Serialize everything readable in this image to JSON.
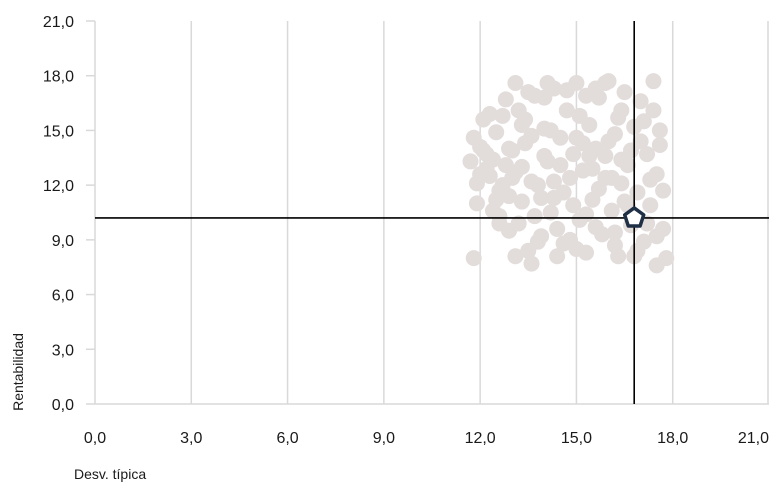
{
  "chart_data": {
    "type": "scatter",
    "title": "",
    "xlabel": "Desv. típica",
    "ylabel": "Rentabilidad",
    "xlim": [
      0,
      21
    ],
    "ylim": [
      0,
      21
    ],
    "x_ticks": [
      "0,0",
      "3,0",
      "6,0",
      "9,0",
      "12,0",
      "15,0",
      "18,0",
      "21,0"
    ],
    "y_ticks": [
      "0,0",
      "3,0",
      "6,0",
      "9,0",
      "12,0",
      "15,0",
      "18,0",
      "21,0"
    ],
    "grid": "vertical",
    "colors": {
      "points": "#e2dcdb",
      "grid": "#d9d9d9",
      "crosshair": "#000000",
      "marker_stroke": "#1f2f45",
      "marker_fill": "#ffffff"
    },
    "highlight": {
      "x": 16.8,
      "y": 10.2,
      "shape": "pentagon"
    },
    "crosshair": {
      "x": 16.8,
      "y": 10.2
    },
    "series": [
      {
        "points": [
          [
            11.8,
            8.0
          ],
          [
            11.7,
            13.3
          ],
          [
            11.8,
            14.6
          ],
          [
            11.9,
            12.1
          ],
          [
            11.9,
            11.0
          ],
          [
            12.0,
            14.1
          ],
          [
            12.1,
            15.6
          ],
          [
            12.2,
            13.7
          ],
          [
            12.3,
            12.5
          ],
          [
            12.4,
            10.6
          ],
          [
            12.5,
            14.9
          ],
          [
            12.6,
            11.7
          ],
          [
            12.7,
            15.8
          ],
          [
            12.6,
            9.9
          ],
          [
            12.8,
            13.1
          ],
          [
            12.9,
            9.5
          ],
          [
            13.0,
            12.4
          ],
          [
            13.1,
            8.1
          ],
          [
            13.1,
            17.6
          ],
          [
            13.2,
            16.1
          ],
          [
            13.3,
            11.1
          ],
          [
            13.4,
            14.3
          ],
          [
            13.5,
            8.4
          ],
          [
            13.6,
            7.7
          ],
          [
            13.7,
            16.9
          ],
          [
            13.8,
            12.0
          ],
          [
            13.9,
            9.2
          ],
          [
            14.0,
            15.1
          ],
          [
            14.1,
            13.3
          ],
          [
            14.2,
            10.5
          ],
          [
            14.3,
            17.3
          ],
          [
            14.4,
            8.1
          ],
          [
            14.5,
            14.6
          ],
          [
            14.6,
            11.6
          ],
          [
            14.7,
            16.1
          ],
          [
            14.8,
            9.0
          ],
          [
            14.9,
            13.7
          ],
          [
            15.0,
            17.6
          ],
          [
            15.1,
            10.1
          ],
          [
            15.2,
            12.8
          ],
          [
            15.3,
            8.3
          ],
          [
            15.4,
            15.3
          ],
          [
            15.5,
            11.2
          ],
          [
            15.6,
            14.0
          ],
          [
            15.7,
            16.8
          ],
          [
            15.8,
            9.3
          ],
          [
            15.9,
            12.4
          ],
          [
            16.0,
            17.7
          ],
          [
            16.1,
            10.6
          ],
          [
            16.2,
            14.8
          ],
          [
            16.3,
            8.1
          ],
          [
            16.4,
            12.1
          ],
          [
            16.5,
            17.1
          ],
          [
            16.6,
            13.1
          ],
          [
            16.7,
            9.8
          ],
          [
            16.8,
            15.2
          ],
          [
            16.9,
            11.6
          ],
          [
            17.0,
            16.6
          ],
          [
            17.1,
            8.9
          ],
          [
            17.2,
            13.7
          ],
          [
            17.3,
            10.9
          ],
          [
            17.4,
            17.7
          ],
          [
            17.5,
            7.6
          ],
          [
            17.6,
            14.2
          ],
          [
            17.7,
            11.7
          ],
          [
            17.8,
            8.0
          ],
          [
            17.7,
            9.6
          ],
          [
            17.5,
            12.6
          ],
          [
            17.6,
            15.0
          ],
          [
            17.4,
            16.1
          ],
          [
            12.3,
            15.9
          ],
          [
            12.5,
            11.2
          ],
          [
            12.9,
            14.0
          ],
          [
            13.1,
            12.7
          ],
          [
            13.4,
            15.6
          ],
          [
            13.7,
            10.3
          ],
          [
            14.0,
            16.8
          ],
          [
            14.3,
            12.2
          ],
          [
            14.6,
            8.8
          ],
          [
            15.0,
            14.6
          ],
          [
            15.3,
            10.4
          ],
          [
            15.6,
            17.3
          ],
          [
            15.9,
            13.6
          ],
          [
            16.2,
            9.4
          ],
          [
            16.5,
            11.1
          ],
          [
            16.7,
            13.9
          ],
          [
            16.9,
            8.4
          ],
          [
            17.1,
            15.5
          ],
          [
            17.3,
            12.3
          ],
          [
            17.5,
            9.2
          ],
          [
            12.2,
            12.9
          ],
          [
            12.4,
            13.4
          ],
          [
            12.7,
            12.0
          ],
          [
            13.0,
            13.9
          ],
          [
            13.3,
            13.0
          ],
          [
            13.6,
            14.7
          ],
          [
            13.9,
            11.3
          ],
          [
            14.2,
            15.0
          ],
          [
            14.5,
            13.1
          ],
          [
            14.8,
            12.4
          ],
          [
            15.1,
            15.8
          ],
          [
            15.4,
            13.6
          ],
          [
            15.7,
            11.8
          ],
          [
            16.0,
            14.4
          ],
          [
            16.3,
            15.7
          ],
          [
            16.6,
            10.9
          ],
          [
            12.6,
            10.3
          ],
          [
            13.2,
            9.9
          ],
          [
            13.8,
            8.9
          ],
          [
            14.4,
            9.6
          ],
          [
            15.0,
            8.5
          ],
          [
            15.6,
            9.7
          ],
          [
            16.2,
            8.7
          ],
          [
            16.8,
            8.1
          ],
          [
            17.2,
            9.9
          ],
          [
            12.8,
            16.7
          ],
          [
            13.5,
            17.1
          ],
          [
            14.1,
            17.6
          ],
          [
            14.7,
            17.2
          ],
          [
            15.3,
            16.9
          ],
          [
            15.9,
            17.6
          ],
          [
            16.4,
            16.1
          ],
          [
            17.0,
            14.4
          ],
          [
            12.1,
            13.9
          ],
          [
            12.0,
            12.6
          ],
          [
            13.3,
            15.3
          ],
          [
            14.0,
            13.6
          ],
          [
            14.9,
            10.9
          ],
          [
            15.5,
            12.9
          ],
          [
            16.1,
            12.4
          ],
          [
            16.4,
            13.4
          ],
          [
            15.2,
            14.3
          ],
          [
            14.3,
            11.3
          ],
          [
            13.6,
            12.2
          ],
          [
            12.9,
            11.4
          ]
        ]
      }
    ]
  }
}
